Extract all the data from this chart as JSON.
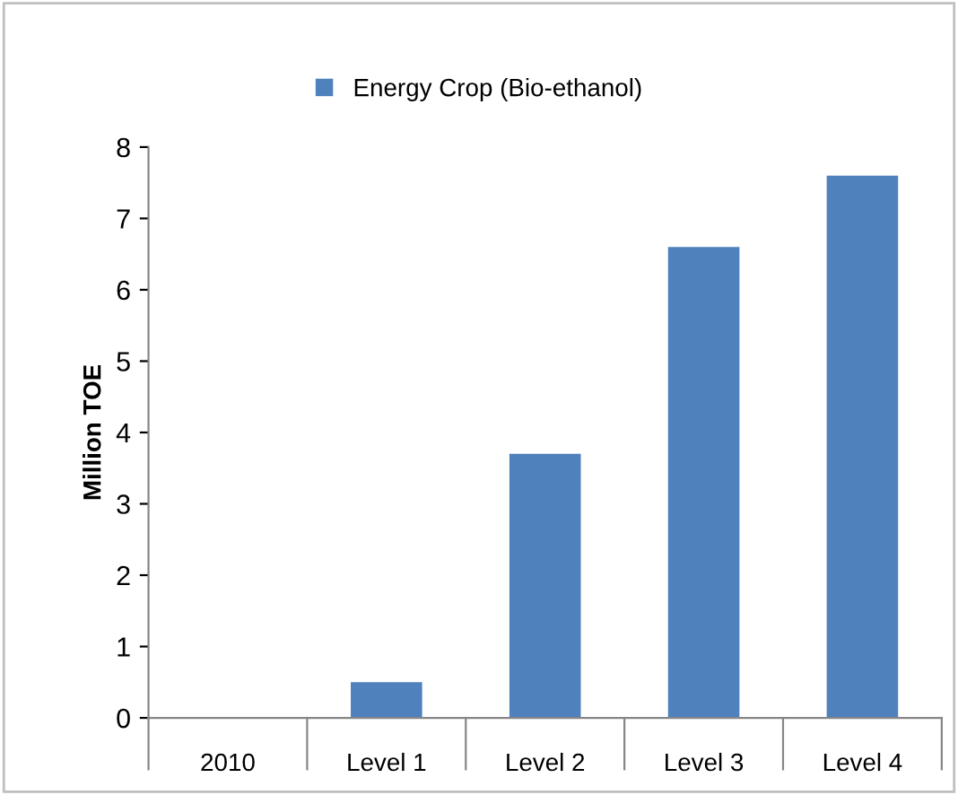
{
  "chart_data": {
    "type": "bar",
    "categories": [
      "2010",
      "Level 1",
      "Level 2",
      "Level 3",
      "Level 4"
    ],
    "series": [
      {
        "name": "Energy Crop (Bio-ethanol)",
        "color": "#4f81bd",
        "values": [
          0,
          0.5,
          3.7,
          6.6,
          7.6
        ]
      }
    ],
    "ylabel": "Million TOE",
    "ylim": [
      0,
      8
    ],
    "yticks": [
      0,
      1,
      2,
      3,
      4,
      5,
      6,
      7,
      8
    ],
    "grid": false,
    "legend": "top"
  }
}
